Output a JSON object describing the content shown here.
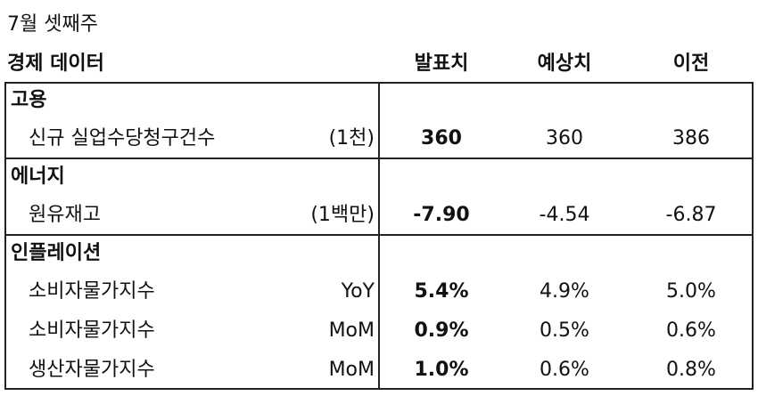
{
  "title": "7월 셋째주",
  "header": [
    "경제 데이터",
    "발표치",
    "예상치",
    "이전"
  ],
  "sections": [
    {
      "name": "고용",
      "rows": [
        {
          "label": "신규 실업수당청구건수",
          "unit": "(1천)",
          "actual": "360",
          "forecast": "360",
          "previous": "386"
        }
      ]
    },
    {
      "name": "에너지",
      "rows": [
        {
          "label": "원유재고",
          "unit": "(1백만)",
          "actual": "-7.90",
          "forecast": "-4.54",
          "previous": "-6.87"
        }
      ]
    },
    {
      "name": "인플레이션",
      "rows": [
        {
          "label": "소비자물가지수",
          "unit": "YoY",
          "actual": "5.4%",
          "forecast": "4.9%",
          "previous": "5.0%"
        },
        {
          "label": "소비자물가지수",
          "unit": "MoM",
          "actual": "0.9%",
          "forecast": "0.5%",
          "previous": "0.6%"
        },
        {
          "label": "생산자물가지수",
          "unit": "MoM",
          "actual": "1.0%",
          "forecast": "0.6%",
          "previous": "0.8%"
        }
      ]
    }
  ]
}
